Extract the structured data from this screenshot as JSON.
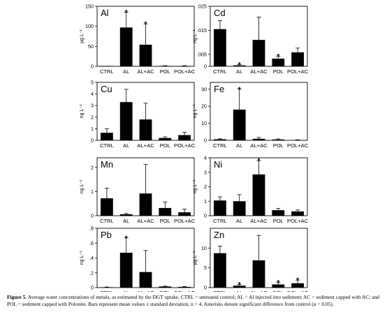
{
  "caption": {
    "label": "Figure 5.",
    "text": "Average water concentrations of metals, as estimated by the DGT uptake. CTRL = untreated control; AL = Al injected into sediment; AC = sediment capped with AC; and POL = sediment capped with Polonite. Bars represent mean values ± standard deviation, n = 4. Asterisks denote significant difference from control (α = 0.05)."
  },
  "chart_data": [
    {
      "type": "bar",
      "title": "Al",
      "ylabel": "µg L⁻¹",
      "categories": [
        "CTRL",
        "AL",
        "AL+AC",
        "POL",
        "POL+AC"
      ],
      "values": [
        1,
        97,
        54,
        1,
        1
      ],
      "errors": [
        0,
        38,
        52,
        0.5,
        0.5
      ],
      "significant": [
        false,
        true,
        true,
        false,
        false
      ],
      "ylim": [
        0,
        150
      ],
      "yticks": [
        0,
        50,
        100,
        150
      ],
      "yticklabels": [
        "0",
        "50",
        "100",
        "150"
      ]
    },
    {
      "type": "bar",
      "title": "Cd",
      "ylabel": "ng L⁻¹",
      "categories": [
        "CTRL",
        "AL",
        "AL+AC",
        "POL",
        "POL+AC"
      ],
      "values": [
        0.0155,
        0.0004,
        0.011,
        0.0032,
        0.0058
      ],
      "errors": [
        0.0035,
        0.0003,
        0.0095,
        0.001,
        0.0018
      ],
      "significant": [
        false,
        true,
        false,
        true,
        false
      ],
      "ylim": [
        0,
        0.025
      ],
      "yticks": [
        0,
        0.005,
        0.015,
        0.025
      ],
      "yticklabels": [
        "0",
        ".005",
        ".015",
        ".025"
      ]
    },
    {
      "type": "bar",
      "title": "Cu",
      "ylabel": "ng L⁻¹",
      "categories": [
        "CTRL",
        "AL",
        "AL+AC",
        "POL",
        "POL+AC"
      ],
      "values": [
        0.65,
        3.3,
        1.8,
        0.2,
        0.45
      ],
      "errors": [
        0.35,
        1.1,
        1.4,
        0.1,
        0.25
      ],
      "significant": [
        false,
        false,
        false,
        false,
        false
      ],
      "ylim": [
        0,
        5
      ],
      "yticks": [
        0,
        1,
        2,
        3,
        4,
        5
      ],
      "yticklabels": [
        "0",
        "1",
        "2",
        "3",
        "4",
        "5"
      ]
    },
    {
      "type": "bar",
      "title": "Fe",
      "ylabel": "ng L⁻¹",
      "categories": [
        "CTRL",
        "AL",
        "AL+AC",
        "POL",
        "POL+AC"
      ],
      "values": [
        0.6,
        18,
        0.9,
        0.5,
        0.2
      ],
      "errors": [
        0.3,
        12,
        0.8,
        0.3,
        0.1
      ],
      "significant": [
        false,
        true,
        false,
        false,
        false
      ],
      "ylim": [
        0,
        34
      ],
      "yticks": [
        0,
        10,
        20,
        30
      ],
      "yticklabels": [
        "0",
        "10",
        "20",
        "30"
      ]
    },
    {
      "type": "bar",
      "title": "Mn",
      "ylabel": "ng L⁻¹",
      "categories": [
        "CTRL",
        "AL",
        "AL+AC",
        "POL",
        "POL+AC"
      ],
      "values": [
        0.72,
        0.06,
        0.92,
        0.32,
        0.14
      ],
      "errors": [
        0.42,
        0.03,
        1.2,
        0.25,
        0.13
      ],
      "significant": [
        false,
        false,
        false,
        false,
        false
      ],
      "ylim": [
        0,
        2.4
      ],
      "yticks": [
        0,
        1,
        2
      ],
      "yticklabels": [
        "0",
        "1",
        "2"
      ]
    },
    {
      "type": "bar",
      "title": "Ni",
      "ylabel": "ng L⁻¹",
      "categories": [
        "CTRL",
        "AL",
        "AL+AC",
        "POL",
        "POL+AC"
      ],
      "values": [
        1.05,
        1.0,
        2.85,
        0.38,
        0.3
      ],
      "errors": [
        0.25,
        0.45,
        0.95,
        0.12,
        0.1
      ],
      "significant": [
        false,
        false,
        true,
        false,
        false
      ],
      "ylim": [
        0,
        4
      ],
      "yticks": [
        0,
        1,
        2,
        3,
        4
      ],
      "yticklabels": [
        "0",
        "1",
        "2",
        "3",
        "4"
      ]
    },
    {
      "type": "bar",
      "title": "Pb",
      "ylabel": "ng L⁻¹",
      "categories": [
        "CTRL",
        "AL",
        "AL+AC",
        "POL",
        "POL+AC"
      ],
      "values": [
        0.005,
        0.47,
        0.21,
        0.015,
        0.01
      ],
      "errors": [
        0.003,
        0.2,
        0.29,
        0.005,
        0.005
      ],
      "significant": [
        false,
        true,
        false,
        false,
        false
      ],
      "ylim": [
        0,
        0.8
      ],
      "yticks": [
        0,
        0.2,
        0.4,
        0.6,
        0.8
      ],
      "yticklabels": [
        "0",
        ".2",
        ".4",
        ".6",
        ".8"
      ]
    },
    {
      "type": "bar",
      "title": "Zn",
      "ylabel": "µg L⁻¹",
      "categories": [
        "CTRL",
        "AL",
        "AL+AC",
        "POL",
        "POL+AC"
      ],
      "values": [
        8.7,
        0.5,
        6.9,
        0.8,
        1.1
      ],
      "errors": [
        1.8,
        0.3,
        6.3,
        0.5,
        0.8
      ],
      "significant": [
        false,
        true,
        false,
        true,
        true
      ],
      "ylim": [
        0,
        15
      ],
      "yticks": [
        0,
        5,
        10
      ],
      "yticklabels": [
        "0",
        "5",
        "10"
      ]
    }
  ]
}
